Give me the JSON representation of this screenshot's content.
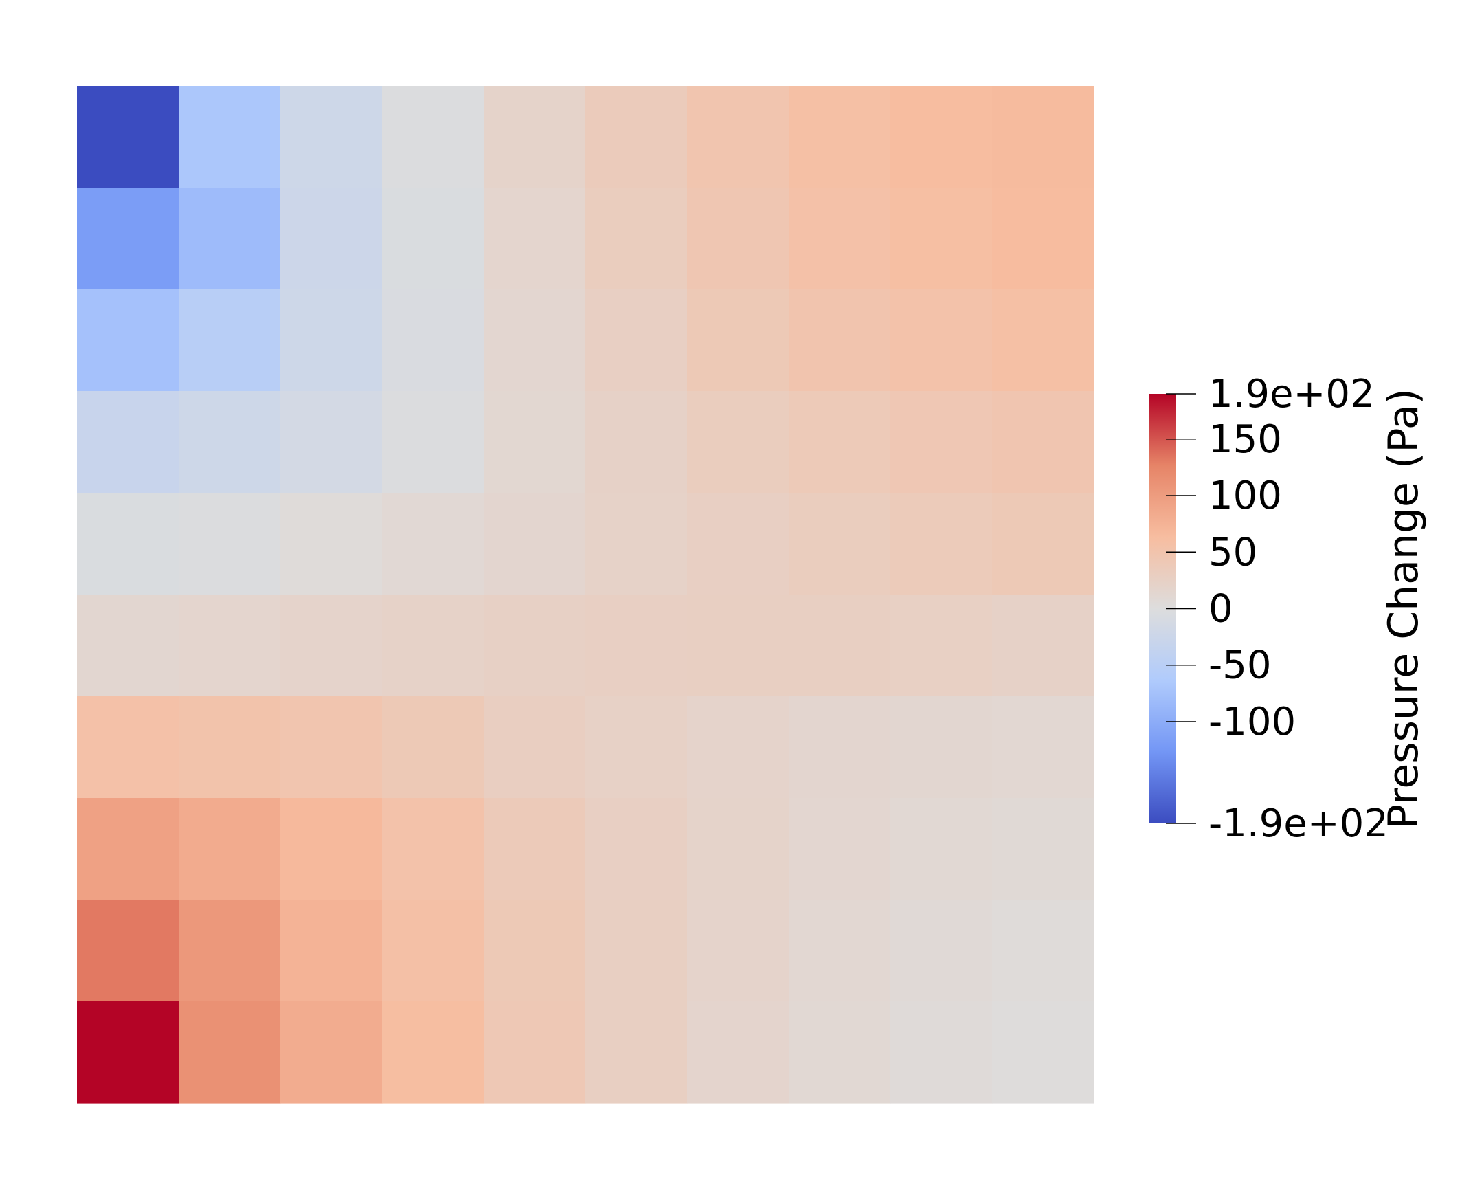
{
  "chart_data": {
    "type": "heatmap",
    "rows": 10,
    "cols": 10,
    "values": [
      [
        -190,
        -68,
        -22,
        -3,
        20,
        35,
        48,
        58,
        63,
        66
      ],
      [
        -118,
        -82,
        -24,
        -5,
        16,
        32,
        45,
        55,
        60,
        65
      ],
      [
        -75,
        -52,
        -22,
        -6,
        14,
        27,
        40,
        49,
        53,
        58
      ],
      [
        -30,
        -22,
        -14,
        -3,
        12,
        23,
        32,
        38,
        43,
        47
      ],
      [
        -5,
        -3,
        4,
        9,
        15,
        22,
        27,
        32,
        36,
        40
      ],
      [
        13,
        16,
        19,
        22,
        25,
        27,
        28,
        28,
        26,
        23
      ],
      [
        55,
        52,
        48,
        40,
        29,
        24,
        19,
        15,
        13,
        11
      ],
      [
        95,
        83,
        68,
        53,
        37,
        27,
        20,
        14,
        10,
        8
      ],
      [
        132,
        105,
        75,
        57,
        40,
        28,
        19,
        11,
        7,
        4
      ],
      [
        190,
        112,
        82,
        62,
        42,
        28,
        17,
        10,
        5,
        2
      ]
    ],
    "scale": {
      "min": -190,
      "max": 190
    },
    "colormap": [
      "#3b4cc0",
      "#7396f5",
      "#b0cbfc",
      "#dddddd",
      "#f7bda0",
      "#e68467",
      "#b40426"
    ],
    "colorbar": {
      "title": "Pressure Change (Pa)",
      "ticks": [
        {
          "value": 190,
          "label": "1.9e+02"
        },
        {
          "value": 150,
          "label": "150"
        },
        {
          "value": 100,
          "label": "100"
        },
        {
          "value": 50,
          "label": "50"
        },
        {
          "value": 0,
          "label": "0"
        },
        {
          "value": -50,
          "label": "-50"
        },
        {
          "value": -100,
          "label": "-100"
        },
        {
          "value": -190,
          "label": "-1.9e+02"
        }
      ]
    }
  }
}
